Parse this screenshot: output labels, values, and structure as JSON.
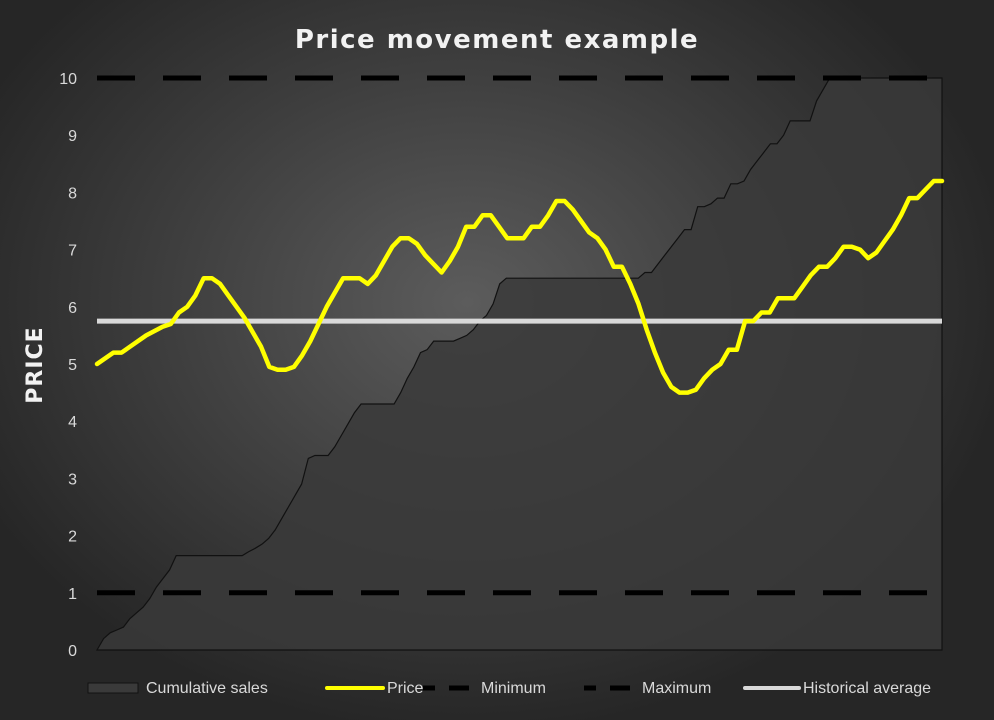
{
  "chart_data": {
    "type": "line",
    "title": "Price movement example",
    "ylabel": "PRICE",
    "xlabel": "",
    "ylim": [
      0,
      10
    ],
    "y_ticks": [
      "0",
      "1",
      "2",
      "3",
      "4",
      "5",
      "6",
      "7",
      "8",
      "9",
      "10"
    ],
    "grid": false,
    "legend_position": "bottom",
    "x": [
      0,
      1,
      2,
      3,
      4,
      5,
      6,
      7,
      8,
      9,
      10,
      11,
      12,
      13,
      14,
      15,
      16,
      17,
      18,
      19,
      20,
      21,
      22,
      23,
      24,
      25,
      26,
      27,
      28,
      29,
      30,
      31,
      32,
      33,
      34,
      35,
      36,
      37,
      38,
      39,
      40,
      41,
      42,
      43,
      44,
      45,
      46,
      47,
      48,
      49,
      50,
      51,
      52,
      53,
      54,
      55,
      56,
      57,
      58,
      59,
      60,
      61,
      62,
      63,
      64,
      65,
      66,
      67,
      68,
      69,
      70,
      71,
      72,
      73,
      74,
      75,
      76,
      77,
      78,
      79,
      80,
      81,
      82,
      83,
      84,
      85,
      86,
      87,
      88,
      89,
      90,
      91,
      92,
      93,
      94,
      95,
      96,
      97,
      98,
      99,
      100,
      101,
      102,
      103,
      104,
      105,
      106,
      107,
      108,
      109,
      110,
      111,
      112,
      113,
      114,
      115,
      116,
      117,
      118,
      119,
      120,
      121,
      122,
      123,
      124,
      125,
      126,
      127,
      128
    ],
    "series": [
      {
        "name": "Cumulative sales",
        "kind": "area",
        "color": "#3a3a3a",
        "values": [
          0,
          0.2,
          0.3,
          0.35,
          0.4,
          0.55,
          0.65,
          0.75,
          0.9,
          1.1,
          1.25,
          1.4,
          1.65,
          1.65,
          1.65,
          1.65,
          1.65,
          1.65,
          1.65,
          1.65,
          1.65,
          1.65,
          1.65,
          1.72,
          1.78,
          1.85,
          1.95,
          2.1,
          2.3,
          2.5,
          2.7,
          2.9,
          3.35,
          3.4,
          3.4,
          3.4,
          3.55,
          3.75,
          3.95,
          4.15,
          4.3,
          4.3,
          4.3,
          4.3,
          4.3,
          4.3,
          4.5,
          4.75,
          4.95,
          5.2,
          5.25,
          5.4,
          5.4,
          5.4,
          5.4,
          5.45,
          5.5,
          5.6,
          5.75,
          5.85,
          6.05,
          6.4,
          6.5,
          6.5,
          6.5,
          6.5,
          6.5,
          6.5,
          6.5,
          6.5,
          6.5,
          6.5,
          6.5,
          6.5,
          6.5,
          6.5,
          6.5,
          6.5,
          6.5,
          6.5,
          6.5,
          6.5,
          6.5,
          6.6,
          6.6,
          6.75,
          6.9,
          7.05,
          7.2,
          7.35,
          7.35,
          7.75,
          7.75,
          7.8,
          7.9,
          7.9,
          8.15,
          8.15,
          8.2,
          8.4,
          8.55,
          8.7,
          8.85,
          8.85,
          9.0,
          9.25,
          9.25,
          9.25,
          9.25,
          9.6,
          9.8,
          10,
          10,
          10,
          10,
          10,
          10,
          10,
          10,
          10,
          10,
          10,
          10,
          10,
          10,
          10,
          10,
          10,
          10
        ]
      },
      {
        "name": "Price",
        "kind": "line",
        "color": "#ffff00",
        "x_range": [
          0,
          128
        ],
        "keypoints": [
          [
            0,
            5.0
          ],
          [
            2,
            5.2
          ],
          [
            3,
            5.2
          ],
          [
            4,
            5.3
          ],
          [
            6,
            5.5
          ],
          [
            8,
            5.65
          ],
          [
            9,
            5.7
          ],
          [
            10,
            5.9
          ],
          [
            11,
            6.0
          ],
          [
            12,
            6.2
          ],
          [
            13,
            6.5
          ],
          [
            14,
            6.5
          ],
          [
            15,
            6.4
          ],
          [
            16,
            6.2
          ],
          [
            17,
            6.0
          ],
          [
            18,
            5.8
          ],
          [
            19,
            5.55
          ],
          [
            20,
            5.3
          ],
          [
            21,
            4.95
          ],
          [
            22,
            4.9
          ],
          [
            23,
            4.9
          ],
          [
            24,
            4.95
          ],
          [
            25,
            5.15
          ],
          [
            26,
            5.4
          ],
          [
            27,
            5.7
          ],
          [
            28,
            6.0
          ],
          [
            29,
            6.25
          ],
          [
            30,
            6.5
          ],
          [
            32,
            6.5
          ],
          [
            33,
            6.4
          ],
          [
            34,
            6.55
          ],
          [
            35,
            6.8
          ],
          [
            36,
            7.05
          ],
          [
            37,
            7.2
          ],
          [
            38,
            7.2
          ],
          [
            39,
            7.1
          ],
          [
            40,
            6.9
          ],
          [
            41,
            6.75
          ],
          [
            42,
            6.6
          ],
          [
            43,
            6.8
          ],
          [
            44,
            7.05
          ],
          [
            45,
            7.4
          ],
          [
            46,
            7.4
          ],
          [
            47,
            7.6
          ],
          [
            48,
            7.6
          ],
          [
            49,
            7.4
          ],
          [
            50,
            7.2
          ],
          [
            52,
            7.2
          ],
          [
            53,
            7.4
          ],
          [
            54,
            7.4
          ],
          [
            55,
            7.6
          ],
          [
            56,
            7.85
          ],
          [
            57,
            7.85
          ],
          [
            58,
            7.7
          ],
          [
            59,
            7.5
          ],
          [
            60,
            7.3
          ],
          [
            61,
            7.2
          ],
          [
            62,
            7.0
          ],
          [
            63,
            6.7
          ],
          [
            64,
            6.7
          ],
          [
            65,
            6.4
          ],
          [
            66,
            6.05
          ],
          [
            67,
            5.6
          ],
          [
            68,
            5.2
          ],
          [
            69,
            4.85
          ],
          [
            70,
            4.6
          ],
          [
            71,
            4.5
          ],
          [
            72,
            4.5
          ],
          [
            73,
            4.55
          ],
          [
            74,
            4.75
          ],
          [
            75,
            4.9
          ],
          [
            76,
            5.0
          ],
          [
            77,
            5.25
          ],
          [
            78,
            5.25
          ],
          [
            79,
            5.75
          ],
          [
            80,
            5.75
          ],
          [
            81,
            5.9
          ],
          [
            82,
            5.9
          ],
          [
            83,
            6.15
          ],
          [
            84,
            6.15
          ],
          [
            85,
            6.15
          ],
          [
            86,
            6.35
          ],
          [
            87,
            6.55
          ],
          [
            88,
            6.7
          ],
          [
            89,
            6.7
          ],
          [
            90,
            6.85
          ],
          [
            91,
            7.05
          ],
          [
            92,
            7.05
          ],
          [
            93,
            7.0
          ],
          [
            94,
            6.85
          ],
          [
            95,
            6.95
          ],
          [
            96,
            7.15
          ],
          [
            97,
            7.35
          ],
          [
            98,
            7.6
          ],
          [
            99,
            7.9
          ],
          [
            100,
            7.9
          ],
          [
            101,
            8.05
          ],
          [
            102,
            8.2
          ],
          [
            103,
            8.2
          ]
        ],
        "x_scale_note": "points span full x range"
      },
      {
        "name": "Minimum",
        "kind": "dashed",
        "color": "#000000",
        "values_constant": 1
      },
      {
        "name": "Maximum",
        "kind": "dashed",
        "color": "#000000",
        "values_constant": 10
      },
      {
        "name": "Historical average",
        "kind": "line",
        "color": "#d9d9d9",
        "values_constant": 5.75
      }
    ]
  }
}
